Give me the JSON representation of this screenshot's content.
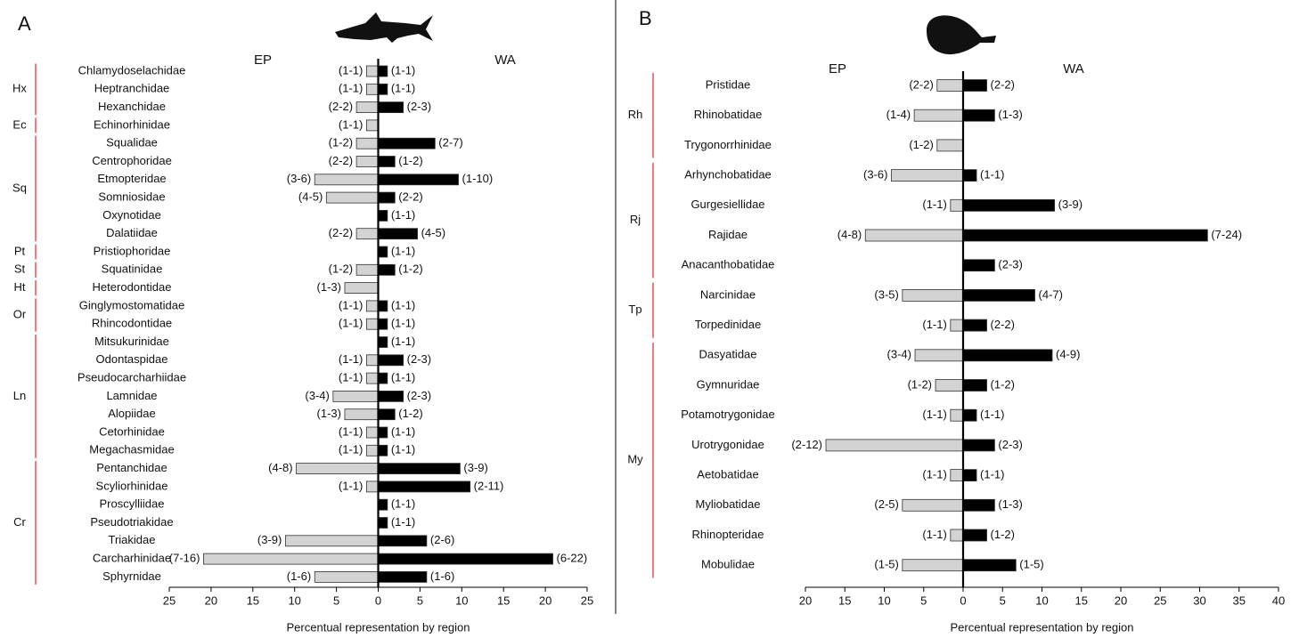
{
  "chart_data": [
    {
      "type": "butterfly-bar",
      "panel": "A",
      "xlabel": "Percentual representation by region",
      "xlim": [
        -25,
        25
      ],
      "xticks": [
        {
          "value": -25,
          "label": "25"
        },
        {
          "value": -20,
          "label": "20"
        },
        {
          "value": -15,
          "label": "15"
        },
        {
          "value": -10,
          "label": "10"
        },
        {
          "value": -5,
          "label": "5"
        },
        0,
        5,
        10,
        15,
        20,
        25
      ],
      "categories": [
        "Chlamydoselachidae",
        "Heptranchidae",
        "Hexanchidae",
        "Echinorhinidae",
        "Squalidae",
        "Centrophoridae",
        "Etmopteridae",
        "Somniosidae",
        "Oxynotidae",
        "Dalatiidae",
        "Pristiophoridae",
        "Squatinidae",
        "Heterodontidae",
        "Ginglymostomatidae",
        "Rhincodontidae",
        "Mitsukurinidae",
        "Odontaspidae",
        "Pseudocarcharhiidae",
        "Lamnidae",
        "Alopiidae",
        "Cetorhinidae",
        "Megachasmidae",
        "Pentanchidae",
        "Scyliorhinidae",
        "Proscylliidae",
        "Pseudotriakidae",
        "Triakidae",
        "Carcharhinidae",
        "Sphyrnidae"
      ],
      "groups": [
        {
          "label": "Hx",
          "count": 3
        },
        {
          "label": "Ec",
          "count": 1
        },
        {
          "label": "Sq",
          "count": 6
        },
        {
          "label": "Pt",
          "count": 1
        },
        {
          "label": "St",
          "count": 1
        },
        {
          "label": "Ht",
          "count": 1
        },
        {
          "label": "Or",
          "count": 2
        },
        {
          "label": "Ln",
          "count": 7
        },
        {
          "label": "Cr",
          "count": 7
        }
      ],
      "series": [
        {
          "name": "EP",
          "color": "#d3d3d3",
          "side": "left",
          "values": [
            1.4,
            1.4,
            2.6,
            1.4,
            2.6,
            2.6,
            7.6,
            6.2,
            null,
            2.6,
            null,
            2.6,
            4.0,
            1.4,
            1.4,
            null,
            1.4,
            1.4,
            5.4,
            4.0,
            1.4,
            1.4,
            9.8,
            1.4,
            null,
            null,
            11.1,
            20.9,
            7.6
          ],
          "range_labels": [
            "(1-1)",
            "(1-1)",
            "(2-2)",
            "(1-1)",
            "(1-2)",
            "(2-2)",
            "(3-6)",
            "(4-5)",
            null,
            "(2-2)",
            null,
            "(1-2)",
            "(1-3)",
            "(1-1)",
            "(1-1)",
            null,
            "(1-1)",
            "(1-1)",
            "(3-4)",
            "(1-3)",
            "(1-1)",
            "(1-1)",
            "(4-8)",
            "(1-1)",
            null,
            null,
            "(3-9)",
            "(7-16)",
            "(1-6)"
          ]
        },
        {
          "name": "WA",
          "color": "#000000",
          "side": "right",
          "values": [
            1.1,
            1.1,
            3.0,
            null,
            6.8,
            2.0,
            9.6,
            2.0,
            1.1,
            4.7,
            1.1,
            2.0,
            null,
            1.1,
            1.1,
            1.1,
            3.0,
            1.1,
            3.0,
            2.0,
            1.1,
            1.1,
            9.8,
            11.0,
            1.1,
            1.1,
            5.8,
            20.9,
            5.8
          ],
          "range_labels": [
            "(1-1)",
            "(1-1)",
            "(2-3)",
            null,
            "(2-7)",
            "(1-2)",
            "(1-10)",
            "(2-2)",
            "(1-1)",
            "(4-5)",
            "(1-1)",
            "(1-2)",
            null,
            "(1-1)",
            "(1-1)",
            "(1-1)",
            "(2-3)",
            "(1-1)",
            "(2-3)",
            "(1-2)",
            "(1-1)",
            "(1-1)",
            "(3-9)",
            "(2-11)",
            "(1-1)",
            "(1-1)",
            "(2-6)",
            "(6-22)",
            "(1-6)"
          ]
        }
      ]
    },
    {
      "type": "butterfly-bar",
      "panel": "B",
      "xlabel": "Percentual representation by region",
      "xlim": [
        -20,
        40
      ],
      "xticks": [
        {
          "value": -20,
          "label": "20"
        },
        {
          "value": -15,
          "label": "15"
        },
        {
          "value": -10,
          "label": "10"
        },
        {
          "value": -5,
          "label": "5"
        },
        0,
        5,
        10,
        15,
        20,
        25,
        30,
        35,
        40
      ],
      "categories": [
        "Pristidae",
        "Rhinobatidae",
        "Trygonorrhinidae",
        "Arhynchobatidae",
        "Gurgesiellidae",
        "Rajidae",
        "Anacanthobatidae",
        "Narcinidae",
        "Torpedinidae",
        "Dasyatidae",
        "Gymnuridae",
        "Potamotrygonidae",
        "Urotrygonidae",
        "Aetobatidae",
        "Myliobatidae",
        "Rhinopteridae",
        "Mobulidae"
      ],
      "groups": [
        {
          "label": "Rh",
          "count": 3
        },
        {
          "label": "Rj",
          "count": 4
        },
        {
          "label": "Tp",
          "count": 2
        },
        {
          "label": "My",
          "count": 8
        }
      ],
      "series": [
        {
          "name": "EP",
          "color": "#d3d3d3",
          "side": "left",
          "values": [
            3.3,
            6.2,
            3.3,
            9.1,
            1.6,
            12.4,
            null,
            7.7,
            1.6,
            6.1,
            3.5,
            1.6,
            17.4,
            1.6,
            7.7,
            1.6,
            7.7
          ],
          "range_labels": [
            "(2-2)",
            "(1-4)",
            "(1-2)",
            "(3-6)",
            "(1-1)",
            "(4-8)",
            null,
            "(3-5)",
            "(1-1)",
            "(3-4)",
            "(1-2)",
            "(1-1)",
            "(2-12)",
            "(1-1)",
            "(2-5)",
            "(1-1)",
            "(1-5)"
          ]
        },
        {
          "name": "WA",
          "color": "#000000",
          "side": "right",
          "values": [
            3.0,
            4.0,
            null,
            1.7,
            11.6,
            31.0,
            4.0,
            9.1,
            3.0,
            11.3,
            3.0,
            1.7,
            4.0,
            1.7,
            4.0,
            3.0,
            6.7
          ],
          "range_labels": [
            "(2-2)",
            "(1-3)",
            null,
            "(1-1)",
            "(3-9)",
            "(7-24)",
            "(2-3)",
            "(4-7)",
            "(2-2)",
            "(4-9)",
            "(1-2)",
            "(1-1)",
            "(2-3)",
            "(1-1)",
            "(1-3)",
            "(1-2)",
            "(1-5)"
          ]
        }
      ]
    }
  ]
}
